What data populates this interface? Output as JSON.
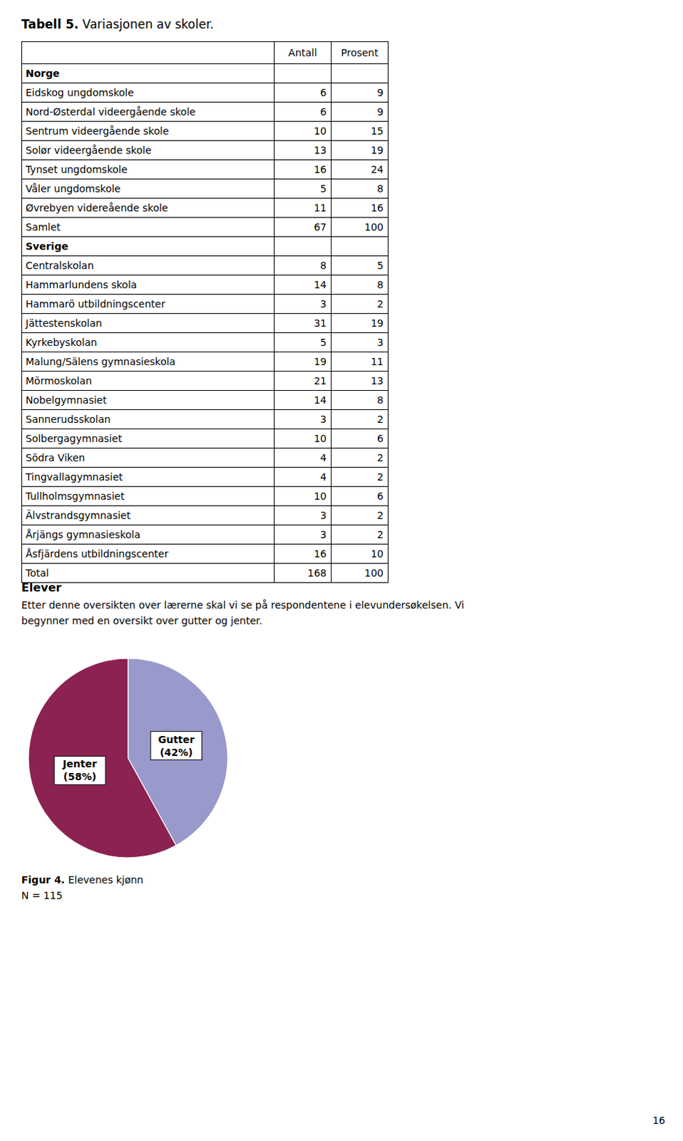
{
  "chart_data": [
    {
      "type": "table",
      "title": "Tabell 5. Variasjonen av skoler.",
      "categories": [
        "Norge",
        "Eidskog ungdomskole",
        "Nord-Østerdal videergående skole",
        "Sentrum videergående skole",
        "Solør videergående skole",
        "Tynset ungdomskole",
        "Våler ungdomskole",
        "Øvrebyen videreående skole",
        "Samlet",
        "Sverige",
        "Centralskolan",
        "Hammarlundens skola",
        "Hammarö utbildningscenter",
        "Jättestenskolan",
        "Kyrkebyskolan",
        "Malung/Sälens gymnasieskola",
        "Mörmoskolan",
        "Nobelgymnasiet",
        "Sannerudsskolan",
        "Solbergagymnasiet",
        "Södra Viken",
        "Tingvallagymnasiet",
        "Tullholmsgymnasiet",
        "Älvstrandsgymnasiet",
        "Årjängs gymnasieskola",
        "Åsfjärdens utbildningscenter",
        "Total"
      ],
      "series": [
        {
          "name": "Antall",
          "values": [
            null,
            6,
            6,
            10,
            13,
            16,
            5,
            11,
            67,
            null,
            8,
            14,
            3,
            31,
            5,
            19,
            21,
            14,
            3,
            10,
            4,
            4,
            10,
            3,
            3,
            16,
            168
          ]
        },
        {
          "name": "Prosent",
          "values": [
            null,
            9,
            9,
            15,
            19,
            24,
            8,
            16,
            100,
            null,
            5,
            8,
            2,
            19,
            3,
            11,
            13,
            8,
            2,
            6,
            2,
            2,
            6,
            2,
            2,
            10,
            100
          ]
        }
      ]
    },
    {
      "type": "pie",
      "title": "Figur 4. Elevenes kjønn",
      "categories": [
        "Gutter",
        "Jenter"
      ],
      "values": [
        42,
        58
      ],
      "value_labels": [
        "(42%)",
        "(58%)"
      ],
      "colors": [
        "#9999CC",
        "#8B2252"
      ],
      "data_labels": true,
      "annotations": [
        "Elever",
        "Etter denne oversikten over lærerne skal vi se på respondentene i elevundersøkelsen. Vi",
        "begynner med en oversikt over gutter og jenter.",
        "N = 115",
        "16"
      ]
    }
  ]
}
